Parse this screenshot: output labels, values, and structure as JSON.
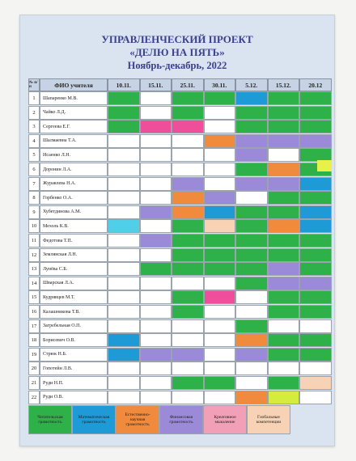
{
  "title_line1": "УПРАВЛЕНЧЕСКИЙ ПРОЕКТ",
  "title_line2": "«ДЕЛЮ НА ПЯТЬ»",
  "title_line3": "Ноябрь-декабрь, 2022",
  "header": {
    "num": "№ п/п",
    "fio": "ФИО учителя",
    "dates": [
      "10.11.",
      "15.11.",
      "25.11.",
      "30.11.",
      "5.12.",
      "15.12.",
      "20.12"
    ]
  },
  "colors": {
    "G": "#2fb14a",
    "B": "#1e9ad6",
    "O": "#f08a3c",
    "V": "#9a8ad8",
    "P": "#ef4f9a",
    "Y": "#d6ec3c",
    "L": "#f7d2b4",
    "C": "#4fcfe8"
  },
  "rows": [
    {
      "n": "1",
      "name": "Шапаренко М.В.",
      "marks": [
        "G",
        "",
        "G",
        "G",
        "B",
        "G",
        "G"
      ]
    },
    {
      "n": "2",
      "name": "Чайко Л.Д.",
      "marks": [
        "G",
        "",
        "G",
        "",
        "G",
        "G",
        "G"
      ]
    },
    {
      "n": "3",
      "name": "Сергеева Е.Г.",
      "marks": [
        "G",
        "P",
        "P",
        "",
        "G",
        "G",
        "G"
      ]
    },
    {
      "n": "4",
      "name": "Шалмаевна Т.А.",
      "marks": [
        "",
        "",
        "",
        "O",
        "V",
        "V",
        "V"
      ]
    },
    {
      "n": "5",
      "name": "Исаенко Л.Н.",
      "marks": [
        "",
        "",
        "",
        "",
        "V",
        "",
        "G"
      ]
    },
    {
      "n": "6",
      "name": "Доронин Л.А.",
      "marks": [
        "",
        "",
        "",
        "",
        "G",
        "O",
        "G"
      ]
    },
    {
      "n": "7",
      "name": "Журавлева Н.А.",
      "marks": [
        "",
        "",
        "V",
        "",
        "V",
        "V",
        "B"
      ]
    },
    {
      "n": "8",
      "name": "Горбенко О.А.",
      "marks": [
        "",
        "",
        "O",
        "V",
        "",
        "G",
        "G"
      ]
    },
    {
      "n": "9",
      "name": "Хубетдинова А.М.",
      "marks": [
        "",
        "V",
        "O",
        "B",
        "G",
        "G",
        "B"
      ]
    },
    {
      "n": "10",
      "name": "Мехоль К.В.",
      "marks": [
        "C",
        "",
        "G",
        "L",
        "G",
        "O",
        "B"
      ]
    },
    {
      "n": "11",
      "name": "Федотова Т.П.",
      "marks": [
        "",
        "V",
        "G",
        "G",
        "G",
        "G",
        "G"
      ]
    },
    {
      "n": "12",
      "name": "Землянская Л.Н.",
      "marks": [
        "",
        "",
        "G",
        "G",
        "G",
        "G",
        "G"
      ]
    },
    {
      "n": "13",
      "name": "Лунёва С.Б.",
      "marks": [
        "",
        "G",
        "G",
        "G",
        "G",
        "V",
        "G"
      ]
    },
    {
      "n": "14",
      "name": "Шварская Л.А.",
      "marks": [
        "",
        "",
        "",
        "",
        "G",
        "V",
        "V"
      ]
    },
    {
      "n": "15",
      "name": "Кудрявцев М.Т.",
      "marks": [
        "",
        "",
        "G",
        "P",
        "",
        "G",
        "G"
      ]
    },
    {
      "n": "16",
      "name": "Калашникова Т.В.",
      "marks": [
        "",
        "",
        "G",
        "",
        "",
        "G",
        "G"
      ]
    },
    {
      "n": "17",
      "name": "Загребельная О.П.",
      "marks": [
        "",
        "",
        "",
        "",
        "G",
        "",
        ""
      ]
    },
    {
      "n": "18",
      "name": "Борисевич О.В.",
      "marks": [
        "B",
        "",
        "",
        "",
        "O",
        "G",
        "G"
      ]
    },
    {
      "n": "19",
      "name": "Стрюк Н.Б.",
      "marks": [
        "B",
        "V",
        "V",
        "",
        "V",
        "G",
        "G"
      ]
    },
    {
      "n": "20",
      "name": "Гопотейн Л.В.",
      "marks": [
        "",
        "",
        "",
        "",
        "",
        "",
        ""
      ]
    },
    {
      "n": "21",
      "name": "Руди Н.П.",
      "marks": [
        "",
        "",
        "G",
        "G",
        "",
        "G",
        "L"
      ]
    },
    {
      "n": "22",
      "name": "Руди О.В.",
      "marks": [
        "",
        "",
        "",
        "",
        "O",
        "Y",
        ""
      ]
    }
  ],
  "legend": [
    {
      "label": "Читательская грамотность",
      "color": "#2fb14a"
    },
    {
      "label": "Математическая грамотность",
      "color": "#1e9ad6"
    },
    {
      "label": "Естественно-научная грамотность",
      "color": "#f08a3c"
    },
    {
      "label": "Финансовая грамотность",
      "color": "#9a8ad8"
    },
    {
      "label": "Креативное мышление",
      "color": "#f2a0b8"
    },
    {
      "label": "Глобальные компетенции",
      "color": "#f7d2b4"
    }
  ]
}
